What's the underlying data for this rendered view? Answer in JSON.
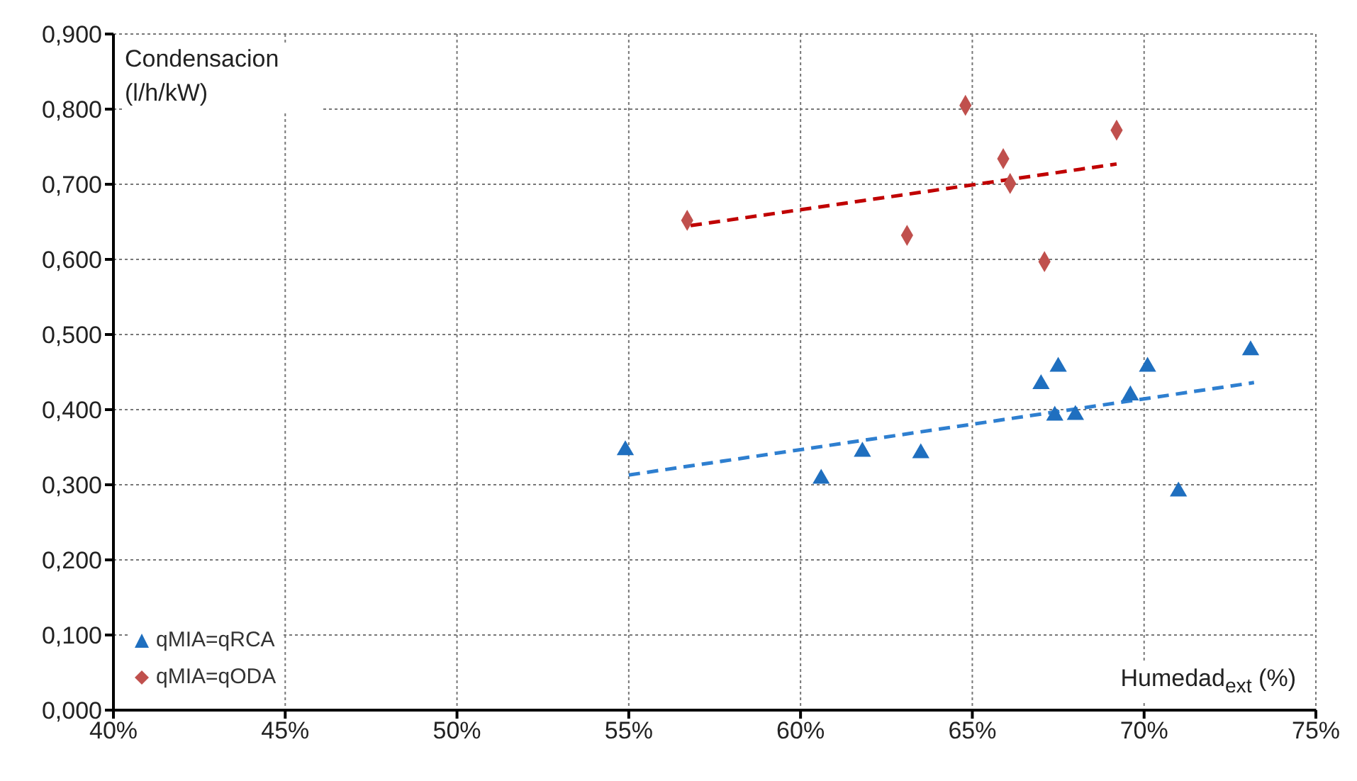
{
  "chart_data": {
    "type": "scatter",
    "xlabel": "Humedad$_{ext}$ (%)",
    "ylabel": "Condensacion (l/h/kW)",
    "series": [
      {
        "name": "qMIA=qRCA",
        "color": "#1f6fbf",
        "marker": "triangle",
        "x": [
          54.9,
          60.6,
          61.8,
          63.5,
          67.0,
          67.5,
          67.4,
          68.0,
          69.6,
          70.1,
          71.0,
          73.1
        ],
        "values": [
          0.346,
          0.308,
          0.344,
          0.342,
          0.434,
          0.457,
          0.392,
          0.393,
          0.419,
          0.457,
          0.291,
          0.479
        ]
      },
      {
        "name": "qMIA=qODA",
        "color": "#c0504d",
        "marker": "diamond",
        "x": [
          56.7,
          63.1,
          64.8,
          65.9,
          66.1,
          67.1,
          69.2
        ],
        "values": [
          0.652,
          0.632,
          0.805,
          0.734,
          0.701,
          0.597,
          0.772
        ]
      },
      {
        "type": "line",
        "color": "#2e7fd0",
        "line_style": "dashed",
        "marker": "none",
        "x": [
          55.0,
          73.2
        ],
        "values": [
          0.313,
          0.436
        ]
      },
      {
        "type": "line",
        "color": "#c00000",
        "line_style": "dashed",
        "marker": "none",
        "x": [
          56.8,
          69.2
        ],
        "values": [
          0.645,
          0.727
        ]
      }
    ],
    "xlim": [
      40,
      75
    ],
    "xticks": [
      {
        "value": 40,
        "label": "40%"
      },
      {
        "value": 45,
        "label": "45%"
      },
      {
        "value": 50,
        "label": "50%"
      },
      {
        "value": 55,
        "label": "55%"
      },
      {
        "value": 60,
        "label": "60%"
      },
      {
        "value": 65,
        "label": "65%"
      },
      {
        "value": 70,
        "label": "70%"
      },
      {
        "value": 75,
        "label": "75%"
      }
    ],
    "ylim": [
      0,
      0.9
    ],
    "yticks": [
      {
        "value": 0,
        "label": "0,000"
      },
      {
        "value": 0.1,
        "label": "0,100"
      },
      {
        "value": 0.2,
        "label": "0,200"
      },
      {
        "value": 0.3,
        "label": "0,300"
      },
      {
        "value": 0.4,
        "label": "0,400"
      },
      {
        "value": 0.5,
        "label": "0,500"
      },
      {
        "value": 0.6,
        "label": "0,600"
      },
      {
        "value": 0.7,
        "label": "0,700"
      },
      {
        "value": 0.8,
        "label": "0,800"
      },
      {
        "value": 0.9,
        "label": "0,900"
      }
    ],
    "grid": true,
    "legend": "bottom left"
  }
}
